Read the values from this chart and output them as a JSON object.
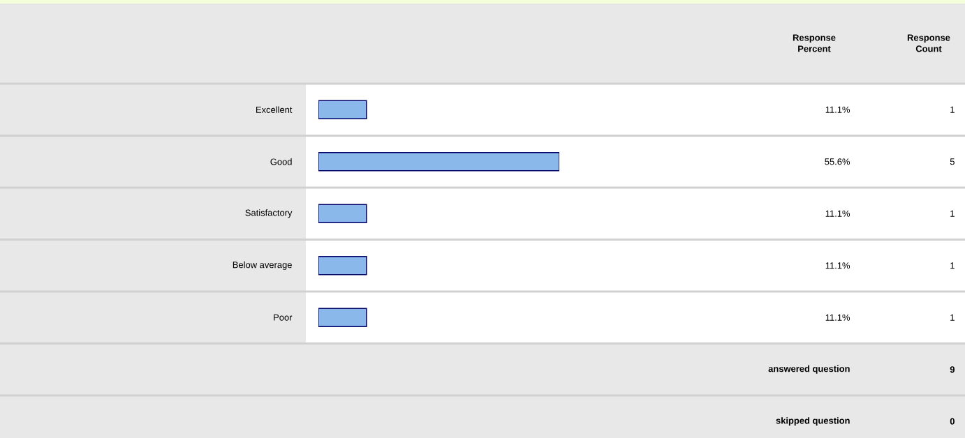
{
  "chart_data": {
    "type": "bar",
    "orientation": "horizontal",
    "categories": [
      "Excellent",
      "Good",
      "Satisfactory",
      "Below average",
      "Poor"
    ],
    "values": [
      11.1,
      55.6,
      11.1,
      11.1,
      11.1
    ],
    "value_labels": [
      "11.1%",
      "55.6%",
      "11.1%",
      "11.1%",
      "11.1%"
    ],
    "color": "#8ab8ea",
    "tick_labels": "y",
    "annotations": [
      "Response Percent",
      "Response Count",
      "1",
      "5",
      "1",
      "1",
      "1",
      "answered question",
      "9",
      "skipped question",
      "0"
    ]
  }
}
